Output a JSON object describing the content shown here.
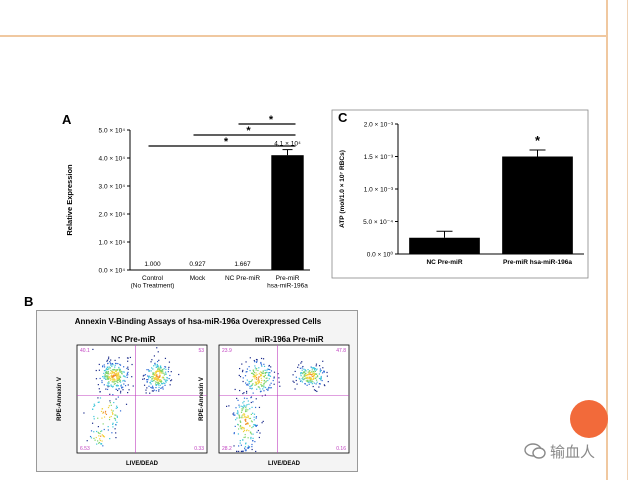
{
  "panel_a": {
    "label": "A",
    "ylabel": "Relative Expression",
    "y_ticks": [
      "0.0 × 10⁴",
      "1.0 × 10⁴",
      "2.0 × 10⁴",
      "3.0 × 10⁴",
      "4.0 × 10⁴",
      "5.0 × 10⁴"
    ],
    "categories": [
      "Control\n(No Treatment)",
      "Mock",
      "NC Pre-miR",
      "Pre-miR\nhsa-miR-196a"
    ],
    "value_labels": [
      "1.000",
      "0.927",
      "1.667",
      "4.1 × 10⁴"
    ],
    "sig_marks": [
      "*",
      "*",
      "*"
    ]
  },
  "panel_c": {
    "label": "C",
    "ylabel": "ATP (mol/1.0 × 10⁷ RBCs)",
    "y_ticks": [
      "0.0 × 10⁰",
      "5.0 × 10⁻⁴",
      "1.0 × 10⁻³",
      "1.5 × 10⁻³",
      "2.0 × 10⁻³"
    ],
    "categories": [
      "NC Pre-miR",
      "Pre-miR hsa-miR-196a"
    ],
    "sig_mark": "*"
  },
  "panel_b": {
    "label": "B",
    "title": "Annexin V-Binding Assays of hsa-miR-196a Overexpressed Cells",
    "plots": [
      {
        "title": "NC Pre-miR",
        "ylabel": "RPE-Annexin V",
        "xlabel": "LIVE/DEAD",
        "q_ul": "40.1",
        "q_ur": "53",
        "q_ll": "6.53",
        "q_lr": "0.33"
      },
      {
        "title": "miR-196a Pre-miR",
        "ylabel": "RPE-Annexin V",
        "xlabel": "LIVE/DEAD",
        "q_ul": "23.9",
        "q_ur": "47.8",
        "q_ll": "28.2",
        "q_lr": "0.16"
      }
    ]
  },
  "watermark": {
    "text": "输血人"
  },
  "colors": {
    "accent": "#f26a3a",
    "border": "#f0c8a0"
  },
  "chart_data": [
    {
      "type": "bar",
      "title": "",
      "categories": [
        "Control (No Treatment)",
        "Mock",
        "NC Pre-miR",
        "Pre-miR hsa-miR-196a"
      ],
      "values": [
        1.0,
        0.927,
        1.667,
        41000
      ],
      "error": [
        0,
        0,
        0,
        2000
      ],
      "xlabel": "",
      "ylabel": "Relative Expression",
      "ylim": [
        0,
        50000
      ],
      "grid": false,
      "legend": "none"
    },
    {
      "type": "bar",
      "title": "",
      "categories": [
        "NC Pre-miR",
        "Pre-miR hsa-miR-196a"
      ],
      "values": [
        0.00025,
        0.0015
      ],
      "error": [
        0.0001,
        0.0001
      ],
      "xlabel": "",
      "ylabel": "ATP (mol/1.0 × 10⁷ RBCs)",
      "ylim": [
        0,
        0.002
      ],
      "grid": false,
      "legend": "none"
    },
    {
      "type": "scatter",
      "title": "Annexin V-Binding Assays of hsa-miR-196a Overexpressed Cells",
      "panels": [
        "NC Pre-miR",
        "miR-196a Pre-miR"
      ],
      "xlabel": "LIVE/DEAD",
      "ylabel": "RPE-Annexin V",
      "quadrant_percent": [
        {
          "upper_left": 40.1,
          "upper_right": 53,
          "lower_left": 6.53,
          "lower_right": 0.33
        },
        {
          "upper_left": 23.9,
          "upper_right": 47.8,
          "lower_left": 28.2,
          "lower_right": 0.16
        }
      ]
    }
  ]
}
